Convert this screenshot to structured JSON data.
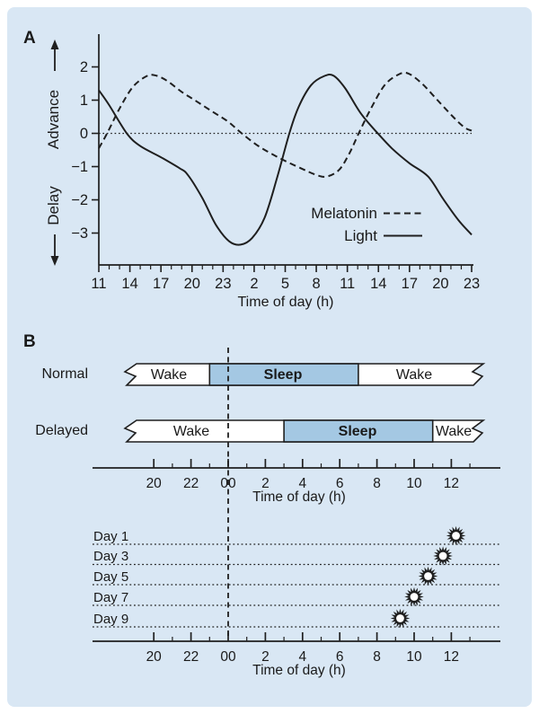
{
  "figure": {
    "colors": {
      "background": "#ffffff",
      "panel_background": "#d9e7f4",
      "ink": "#1f1f1f",
      "text": "#1a1a1a",
      "sleep_fill": "#a4c8e3",
      "wake_fill": "#ffffff"
    }
  },
  "panel_a": {
    "label": "A",
    "advance_label": "Advance",
    "delay_label": "Delay",
    "x_title": "Time of day (h)",
    "legend": {
      "melatonin": "Melatonin",
      "light": "Light"
    }
  },
  "panel_b": {
    "label": "B",
    "row1_label": "Normal",
    "row2_label": "Delayed",
    "x_title": "Time of day (h)",
    "days": [
      "Day 1",
      "Day 3",
      "Day 5",
      "Day 7",
      "Day 9"
    ]
  },
  "chart_data": [
    {
      "id": "phase-response-curves",
      "type": "line",
      "xlabel": "Time of day (h)",
      "x_tick_labels": [
        "11",
        "14",
        "17",
        "20",
        "23",
        "2",
        "5",
        "8",
        "11",
        "14",
        "17",
        "20",
        "23"
      ],
      "x_hours_range": [
        11,
        47
      ],
      "x_major_step_h": 3,
      "y_ticks": [
        2,
        1,
        0,
        -1,
        -2,
        -3
      ],
      "ylim": [
        -4,
        3
      ],
      "y_axis_upper_label": "Advance",
      "y_axis_lower_label": "Delay",
      "zero_line": "dotted",
      "grid": false,
      "legend_position": "lower right",
      "series": [
        {
          "name": "Melatonin",
          "line_style": "dashed",
          "points": [
            [
              11,
              -0.45
            ],
            [
              11.8,
              0
            ],
            [
              13,
              0.75
            ],
            [
              14.3,
              1.4
            ],
            [
              15.6,
              1.72
            ],
            [
              16.4,
              1.75
            ],
            [
              17.5,
              1.6
            ],
            [
              19,
              1.25
            ],
            [
              20.5,
              0.95
            ],
            [
              22,
              0.65
            ],
            [
              23.5,
              0.35
            ],
            [
              24.8,
              0
            ],
            [
              26.5,
              -0.4
            ],
            [
              28.5,
              -0.75
            ],
            [
              30.5,
              -1.05
            ],
            [
              32,
              -1.25
            ],
            [
              33,
              -1.3
            ],
            [
              34.2,
              -1.1
            ],
            [
              35.2,
              -0.6
            ],
            [
              36.1,
              0
            ],
            [
              37.2,
              0.7
            ],
            [
              38.6,
              1.45
            ],
            [
              40,
              1.78
            ],
            [
              40.9,
              1.8
            ],
            [
              42.2,
              1.5
            ],
            [
              43.7,
              1.0
            ],
            [
              45.2,
              0.5
            ],
            [
              46.3,
              0.18
            ],
            [
              47,
              0.08
            ]
          ]
        },
        {
          "name": "Light",
          "line_style": "solid",
          "points": [
            [
              11,
              1.3
            ],
            [
              12,
              0.85
            ],
            [
              13.7,
              0
            ],
            [
              15,
              -0.38
            ],
            [
              17,
              -0.72
            ],
            [
              18.8,
              -1.05
            ],
            [
              19.6,
              -1.25
            ],
            [
              21,
              -1.95
            ],
            [
              22.3,
              -2.75
            ],
            [
              23.6,
              -3.25
            ],
            [
              24.7,
              -3.35
            ],
            [
              25.8,
              -3.15
            ],
            [
              27,
              -2.55
            ],
            [
              28.2,
              -1.35
            ],
            [
              29.4,
              0
            ],
            [
              30.3,
              0.8
            ],
            [
              31.5,
              1.45
            ],
            [
              32.8,
              1.73
            ],
            [
              33.7,
              1.73
            ],
            [
              34.8,
              1.35
            ],
            [
              36.3,
              0.6
            ],
            [
              37.8,
              0.05
            ],
            [
              39.3,
              -0.45
            ],
            [
              41,
              -0.9
            ],
            [
              42.8,
              -1.3
            ],
            [
              44.2,
              -1.95
            ],
            [
              45.7,
              -2.6
            ],
            [
              47,
              -3.05
            ]
          ]
        }
      ]
    },
    {
      "id": "sleep-schedule-bars",
      "type": "bar",
      "xlabel": "Time of day (h)",
      "x_tick_labels": [
        "20",
        "22",
        "00",
        "2",
        "4",
        "6",
        "8",
        "10",
        "12"
      ],
      "x_tick_hours": [
        -4,
        -2,
        0,
        2,
        4,
        6,
        8,
        10,
        12
      ],
      "midnight_marker": "dashed vertical line at 00",
      "rows": [
        {
          "label": "Normal",
          "sleep_from_h": 23,
          "sleep_to_h": 7,
          "segments": [
            "Wake",
            "Sleep",
            "Wake"
          ]
        },
        {
          "label": "Delayed",
          "sleep_from_h": 3,
          "sleep_to_h": 11,
          "segments": [
            "Wake",
            "Sleep",
            "Wake"
          ]
        }
      ]
    },
    {
      "id": "wake-time-by-day",
      "type": "scatter",
      "xlabel": "Time of day (h)",
      "x_tick_labels": [
        "20",
        "22",
        "00",
        "2",
        "4",
        "6",
        "8",
        "10",
        "12"
      ],
      "categories": [
        "Day 1",
        "Day 3",
        "Day 5",
        "Day 7",
        "Day 9"
      ],
      "values_h": [
        12.25,
        11.55,
        10.75,
        10.0,
        9.25
      ],
      "marker": "sun"
    }
  ]
}
